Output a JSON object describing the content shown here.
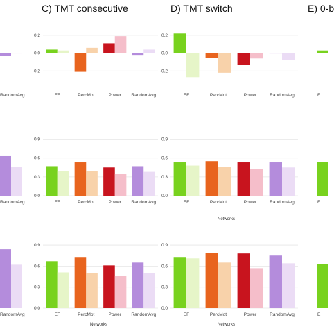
{
  "colors": {
    "panel_bg": "#ffffff",
    "grid": "#e6e6e6",
    "text": "#444444",
    "dark": [
      "#78d21e",
      "#e8641e",
      "#c8141e",
      "#b48cdc"
    ],
    "light": [
      "#e6f5c8",
      "#f8d2aa",
      "#f5beca",
      "#ebdcf5"
    ]
  },
  "chart_data": [
    {
      "type": "bar",
      "title": "C) TMT consecutive",
      "categories": [
        "EF",
        "PercMot",
        "Power",
        "RandomAvg"
      ],
      "ylim": [
        -0.4,
        0.3
      ],
      "yticks": [
        -0.2,
        0.0,
        0.2
      ],
      "xlabel": "",
      "ylabel": "",
      "series": [
        {
          "values": [
            0.04,
            -0.21,
            0.11,
            -0.02
          ]
        },
        {
          "values": [
            0.03,
            0.06,
            0.19,
            0.04
          ]
        }
      ]
    },
    {
      "type": "bar",
      "title": "D) TMT switch",
      "categories": [
        "EF",
        "PercMot",
        "Power",
        "RandomAvg"
      ],
      "ylim": [
        -0.4,
        0.3
      ],
      "yticks": [
        -0.2,
        0.0,
        0.2
      ],
      "xlabel": "",
      "ylabel": "",
      "series": [
        {
          "values": [
            0.22,
            -0.05,
            -0.13,
            0.0
          ]
        },
        {
          "values": [
            -0.27,
            -0.22,
            -0.06,
            -0.08
          ]
        }
      ]
    },
    {
      "type": "bar",
      "title": "",
      "categories": [
        "EF",
        "PercMot",
        "Power",
        "RandomAvg"
      ],
      "ylim": [
        0,
        0.95
      ],
      "yticks": [
        0.0,
        0.3,
        0.6,
        0.9
      ],
      "xlabel": "",
      "ylabel": "",
      "series": [
        {
          "values": [
            0.47,
            0.53,
            0.45,
            0.47
          ]
        },
        {
          "values": [
            0.39,
            0.39,
            0.35,
            0.38
          ]
        }
      ]
    },
    {
      "type": "bar",
      "title": "",
      "categories": [
        "EF",
        "PercMot",
        "Power",
        "RandomAvg"
      ],
      "ylim": [
        0,
        0.95
      ],
      "yticks": [
        0.0,
        0.3,
        0.6,
        0.9
      ],
      "xlabel": "Networks",
      "ylabel": "",
      "series": [
        {
          "values": [
            0.53,
            0.55,
            0.53,
            0.53
          ]
        },
        {
          "values": [
            0.48,
            0.46,
            0.43,
            0.45
          ]
        }
      ]
    },
    {
      "type": "bar",
      "title": "",
      "categories": [
        "EF",
        "PercMot",
        "Power",
        "RandomAvg"
      ],
      "ylim": [
        0,
        0.95
      ],
      "yticks": [
        0.0,
        0.3,
        0.6,
        0.9
      ],
      "xlabel": "Networks",
      "ylabel": "",
      "series": [
        {
          "values": [
            0.67,
            0.73,
            0.61,
            0.65
          ]
        },
        {
          "values": [
            0.51,
            0.5,
            0.46,
            0.5
          ]
        }
      ]
    },
    {
      "type": "bar",
      "title": "",
      "categories": [
        "EF",
        "PercMot",
        "Power",
        "RandomAvg"
      ],
      "ylim": [
        0,
        0.95
      ],
      "yticks": [
        0.0,
        0.3,
        0.6,
        0.9
      ],
      "xlabel": "Networks",
      "ylabel": "",
      "series": [
        {
          "values": [
            0.73,
            0.79,
            0.78,
            0.75
          ]
        },
        {
          "values": [
            0.71,
            0.65,
            0.57,
            0.64
          ]
        }
      ]
    }
  ],
  "left_column": {
    "title": "",
    "categories": [
      "RandomAvg",
      "RandomAvg",
      "RandomAvg"
    ],
    "ylim": [
      [
        -0.4,
        0.3
      ],
      [
        0,
        0.95
      ],
      [
        0,
        0.95
      ]
    ],
    "values": [
      [
        -0.03,
        0.0
      ],
      [
        0.63,
        0.46
      ],
      [
        0.84,
        0.62
      ]
    ]
  },
  "right_column": {
    "title": "E) 0-b",
    "first_category": "E",
    "ylim": [
      [
        -0.4,
        0.3
      ],
      [
        0,
        0.95
      ],
      [
        0,
        0.95
      ]
    ],
    "values": [
      [
        0.03
      ],
      [
        0.54
      ],
      [
        0.63
      ]
    ]
  }
}
